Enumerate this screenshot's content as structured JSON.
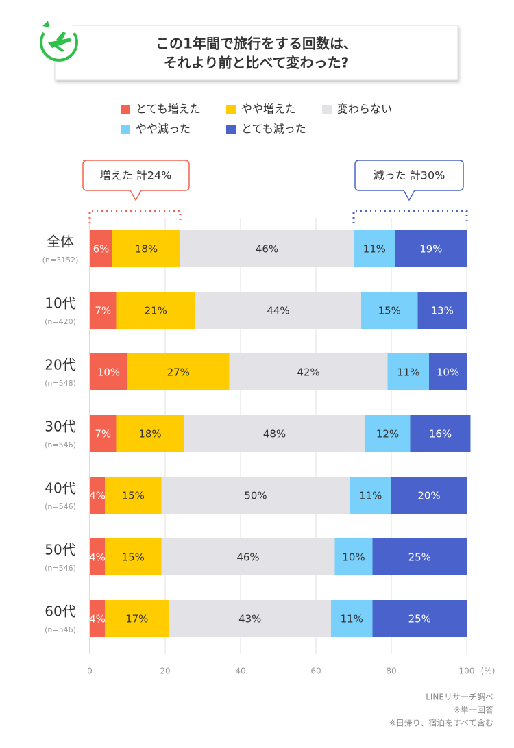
{
  "chart_data": {
    "type": "stacked-bar-horizontal",
    "title_lines": [
      "この1年間で旅行をする回数は、",
      "それより前と比べて変わった?"
    ],
    "categories": [
      "全体",
      "10代",
      "20代",
      "30代",
      "40代",
      "50代",
      "60代"
    ],
    "sample_sizes": [
      "(n=3152)",
      "(n=420)",
      "(n=548)",
      "(n=546)",
      "(n=546)",
      "(n=546)",
      "(n=546)"
    ],
    "series": [
      {
        "name": "とても増えた",
        "color": "#f4634f",
        "label_color": "#ffffff",
        "values": [
          6,
          7,
          10,
          7,
          4,
          4,
          4
        ],
        "value_labels": [
          "6%",
          "7%",
          "10%",
          "7%",
          "4%",
          "4%",
          "4%"
        ]
      },
      {
        "name": "やや増えた",
        "color": "#ffcc00",
        "label_color": "#333333",
        "values": [
          18,
          21,
          27,
          18,
          15,
          15,
          17
        ],
        "value_labels": [
          "18%",
          "21%",
          "27%",
          "18%",
          "15%",
          "15%",
          "17%"
        ]
      },
      {
        "name": "変わらない",
        "color": "#e3e2e6",
        "label_color": "#333333",
        "values": [
          46,
          44,
          42,
          48,
          50,
          46,
          43
        ],
        "value_labels": [
          "46%",
          "44%",
          "42%",
          "48%",
          "50%",
          "46%",
          "43%"
        ]
      },
      {
        "name": "やや減った",
        "color": "#79d1fb",
        "label_color": "#333333",
        "values": [
          11,
          15,
          11,
          12,
          11,
          10,
          11
        ],
        "value_labels": [
          "11%",
          "15%",
          "11%",
          "12%",
          "11%",
          "10%",
          "11%"
        ]
      },
      {
        "name": "とても減った",
        "color": "#4a63cc",
        "label_color": "#ffffff",
        "values": [
          19,
          13,
          10,
          16,
          20,
          25,
          25
        ],
        "value_labels": [
          "19%",
          "13%",
          "10%",
          "16%",
          "20%",
          "25%",
          "25%"
        ]
      }
    ],
    "annotations": [
      "増えた 計24%",
      "減った 計30%"
    ],
    "xlim": [
      0,
      100
    ],
    "xticks": [
      0,
      20,
      40,
      60,
      80,
      100
    ],
    "x_unit": "(%)",
    "grid": true,
    "footnotes": [
      "LINEリサーチ調べ",
      "※単一回答",
      "※日帰り、宿泊をすべて含む"
    ]
  }
}
